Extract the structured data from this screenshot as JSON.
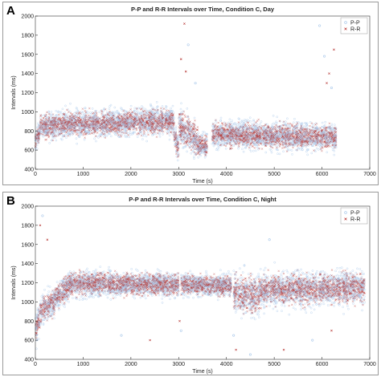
{
  "panels": [
    {
      "letter": "A"
    },
    {
      "letter": "B"
    }
  ],
  "colors": {
    "pp": "#a8c8ea",
    "rr": "#b5312e"
  },
  "chart_data": [
    {
      "type": "scatter",
      "title": "P-P and R-R Intervals over Time, Condition C, Day",
      "xlabel": "Time (s)",
      "ylabel": "Intervals (ms)",
      "xlim": [
        0,
        7000
      ],
      "ylim": [
        400,
        2000
      ],
      "xticks": [
        0,
        1000,
        2000,
        3000,
        4000,
        5000,
        6000,
        7000
      ],
      "yticks": [
        400,
        600,
        800,
        1000,
        1200,
        1400,
        1600,
        1800,
        2000
      ],
      "legend": "top-right",
      "series": [
        {
          "name": "P-P",
          "marker": "circle",
          "color": "#a8c8ea"
        },
        {
          "name": "R-R",
          "marker": "x",
          "color": "#b5312e"
        }
      ],
      "segments": [
        {
          "x": [
            0,
            100
          ],
          "mean": [
            690,
            800
          ],
          "spread": 90
        },
        {
          "x": [
            100,
            1000
          ],
          "mean": [
            850,
            880
          ],
          "spread": 110
        },
        {
          "x": [
            1000,
            2000
          ],
          "mean": [
            870,
            890
          ],
          "spread": 110
        },
        {
          "x": [
            2000,
            2900
          ],
          "mean": [
            900,
            900
          ],
          "spread": 110
        },
        {
          "x": [
            2900,
            3000
          ],
          "mean": [
            800,
            600
          ],
          "spread": 120
        },
        {
          "x": [
            3000,
            3400
          ],
          "mean": [
            860,
            700
          ],
          "spread": 150
        },
        {
          "x": [
            3400,
            3600
          ],
          "mean": [
            650,
            650
          ],
          "spread": 90
        },
        {
          "x": [
            3700,
            6300
          ],
          "mean": [
            760,
            740
          ],
          "spread": 110
        }
      ],
      "outliers": [
        {
          "x": 3120,
          "y": 1920
        },
        {
          "x": 3200,
          "y": 1700
        },
        {
          "x": 3050,
          "y": 1550
        },
        {
          "x": 3350,
          "y": 1300
        },
        {
          "x": 3150,
          "y": 1420
        },
        {
          "x": 6050,
          "y": 1580
        },
        {
          "x": 6150,
          "y": 1400
        },
        {
          "x": 6200,
          "y": 1250
        },
        {
          "x": 6250,
          "y": 1650
        },
        {
          "x": 5950,
          "y": 1900
        },
        {
          "x": 6100,
          "y": 1300
        }
      ]
    },
    {
      "type": "scatter",
      "title": "P-P and R-R Intervals over Time, Condition C, Night",
      "xlabel": "Time (s)",
      "ylabel": "Intervals (ms)",
      "xlim": [
        0,
        7000
      ],
      "ylim": [
        400,
        2000
      ],
      "xticks": [
        0,
        1000,
        2000,
        3000,
        4000,
        5000,
        6000,
        7000
      ],
      "yticks": [
        400,
        600,
        800,
        1000,
        1200,
        1400,
        1600,
        1800,
        2000
      ],
      "legend": "top-right",
      "series": [
        {
          "name": "P-P",
          "marker": "circle",
          "color": "#a8c8ea"
        },
        {
          "name": "R-R",
          "marker": "x",
          "color": "#b5312e"
        }
      ],
      "segments": [
        {
          "x": [
            0,
            100
          ],
          "mean": [
            700,
            850
          ],
          "spread": 120
        },
        {
          "x": [
            100,
            400
          ],
          "mean": [
            900,
            1000
          ],
          "spread": 130
        },
        {
          "x": [
            400,
            700
          ],
          "mean": [
            1050,
            1150
          ],
          "spread": 110
        },
        {
          "x": [
            700,
            3000
          ],
          "mean": [
            1190,
            1180
          ],
          "spread": 100
        },
        {
          "x": [
            3050,
            4100
          ],
          "mean": [
            1180,
            1170
          ],
          "spread": 90
        },
        {
          "x": [
            4150,
            4700
          ],
          "mean": [
            1100,
            1050
          ],
          "spread": 170
        },
        {
          "x": [
            4700,
            6900
          ],
          "mean": [
            1120,
            1150
          ],
          "spread": 140
        }
      ],
      "outliers": [
        {
          "x": 100,
          "y": 1800
        },
        {
          "x": 150,
          "y": 1900
        },
        {
          "x": 250,
          "y": 1650
        },
        {
          "x": 3050,
          "y": 700
        },
        {
          "x": 3020,
          "y": 800
        },
        {
          "x": 4150,
          "y": 650
        },
        {
          "x": 4200,
          "y": 500
        },
        {
          "x": 4500,
          "y": 450
        },
        {
          "x": 5200,
          "y": 500
        },
        {
          "x": 5800,
          "y": 600
        },
        {
          "x": 2400,
          "y": 600
        },
        {
          "x": 1800,
          "y": 650
        },
        {
          "x": 6200,
          "y": 700
        },
        {
          "x": 4900,
          "y": 1650
        }
      ]
    }
  ]
}
